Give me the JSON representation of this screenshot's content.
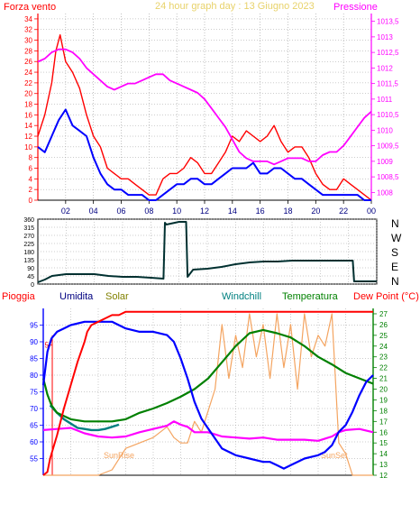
{
  "panel1": {
    "title": "24 hour graph day : 13 Giugno 2023",
    "left_label": "Forza vento",
    "right_label": "Pressione",
    "colors": {
      "title": "#e8d26a",
      "wind": "#ff0000",
      "gust": "#ff0000",
      "avg": "#0000ff",
      "pressure": "#ff00ff",
      "left_axis": "#ff0000",
      "right_axis": "#ff00ff",
      "grid": "#888888"
    }
  },
  "panel2": {
    "dir_labels": [
      "N",
      "W",
      "S",
      "E",
      "N"
    ],
    "colors": {
      "line": "#003030",
      "axis": "#000000"
    }
  },
  "panel3": {
    "legend": [
      "Pioggia",
      "Umidita",
      "Solar",
      "Windchill",
      "Temperatura",
      "Dew Point (°C)"
    ],
    "legend_colors": [
      "#ff0000",
      "#000080",
      "#808000",
      "#008080",
      "#008000",
      "#ff0000"
    ],
    "annotations": [
      "SunRise",
      "SunSet"
    ],
    "annotation_color": "#f4a460",
    "colors": {
      "humidity": "#0000ff",
      "temperature": "#008000",
      "dewpoint": "#ff00ff",
      "windchill": "#008080",
      "solar": "#f4a460",
      "rain": "#ff0000",
      "left_axis": "#0000ff",
      "right_axis": "#008000"
    }
  },
  "chart_data": [
    {
      "type": "line",
      "title": "24 hour graph day : 13 Giugno 2023",
      "xlabel": "",
      "ylabel": "Forza vento",
      "y2label": "Pressione",
      "x_ticks": [
        "02",
        "04",
        "06",
        "08",
        "10",
        "12",
        "14",
        "16",
        "18",
        "20",
        "22",
        "00"
      ],
      "x_range": [
        0,
        24
      ],
      "ylim": [
        0,
        35
      ],
      "y_ticks": [
        "0",
        "2",
        "4",
        "6",
        "8",
        "10",
        "12",
        "14",
        "16",
        "18",
        "20",
        "22",
        "24",
        "26",
        "28",
        "30",
        "32",
        "34"
      ],
      "y2lim": [
        1007.75,
        1013.75
      ],
      "y2_ticks": [
        "1008",
        "1008,5",
        "1009",
        "1009,5",
        "1010",
        "1010,5",
        "1011",
        "1011,5",
        "1012",
        "1012,5",
        "1013",
        "1013,5"
      ],
      "grid": true,
      "series": [
        {
          "name": "",
          "axis": "left",
          "color": "#ff0000",
          "x": [
            0,
            0.5,
            1,
            1.3,
            1.6,
            2,
            2.5,
            3,
            3.5,
            4,
            4.5,
            5,
            5.5,
            6,
            6.5,
            7,
            7.5,
            8,
            8.5,
            9,
            9.5,
            10,
            10.5,
            11,
            11.5,
            12,
            12.5,
            13,
            13.5,
            14,
            14.5,
            15,
            15.5,
            16,
            16.5,
            17,
            17.5,
            18,
            18.5,
            19,
            19.5,
            20,
            20.5,
            21,
            21.5,
            22,
            22.5,
            23,
            23.5,
            24
          ],
          "values": [
            12,
            16,
            22,
            28,
            31,
            26,
            24,
            21,
            16,
            12,
            10,
            6,
            5,
            4,
            4,
            3,
            2,
            1,
            1,
            4,
            5,
            5,
            6,
            8,
            7,
            5,
            5,
            7,
            9,
            12,
            11,
            13,
            12,
            11,
            12,
            14,
            11,
            9,
            10,
            10,
            8,
            5,
            3,
            2,
            2,
            4,
            3,
            2,
            1,
            0
          ]
        },
        {
          "name": "",
          "axis": "left",
          "color": "#0000ff",
          "x": [
            0,
            0.5,
            1,
            1.5,
            2,
            2.5,
            3,
            3.5,
            4,
            4.5,
            5,
            5.5,
            6,
            6.5,
            7,
            7.5,
            8,
            8.5,
            9,
            9.5,
            10,
            10.5,
            11,
            11.5,
            12,
            12.5,
            13,
            13.5,
            14,
            14.5,
            15,
            15.5,
            16,
            16.5,
            17,
            17.5,
            18,
            18.5,
            19,
            19.5,
            20,
            20.5,
            21,
            21.5,
            22,
            22.5,
            23,
            23.5,
            24
          ],
          "values": [
            10,
            9,
            12,
            15,
            17,
            14,
            13,
            12,
            8,
            5,
            3,
            2,
            2,
            1,
            1,
            1,
            0,
            0,
            1,
            2,
            3,
            3,
            4,
            4,
            3,
            3,
            4,
            5,
            6,
            6,
            6,
            7,
            5,
            5,
            6,
            6,
            5,
            4,
            4,
            3,
            2,
            1,
            1,
            1,
            1,
            1,
            1,
            0,
            0
          ]
        },
        {
          "name": "",
          "axis": "right",
          "color": "#ff00ff",
          "x": [
            0,
            0.5,
            1,
            1.5,
            2,
            2.5,
            3,
            3.5,
            4,
            4.5,
            5,
            5.5,
            6,
            6.5,
            7,
            7.5,
            8,
            8.5,
            9,
            9.5,
            10,
            10.5,
            11,
            11.5,
            12,
            12.5,
            13,
            13.5,
            14,
            14.5,
            15,
            15.5,
            16,
            16.5,
            17,
            17.5,
            18,
            18.5,
            19,
            19.5,
            20,
            20.5,
            21,
            21.5,
            22,
            22.5,
            23,
            23.5,
            24
          ],
          "values": [
            1012.2,
            1012.3,
            1012.5,
            1012.6,
            1012.6,
            1012.5,
            1012.3,
            1012.0,
            1011.8,
            1011.6,
            1011.4,
            1011.3,
            1011.4,
            1011.5,
            1011.5,
            1011.6,
            1011.7,
            1011.8,
            1011.8,
            1011.6,
            1011.5,
            1011.4,
            1011.3,
            1011.2,
            1011.0,
            1010.7,
            1010.4,
            1010.1,
            1009.7,
            1009.3,
            1009.1,
            1009.0,
            1009.0,
            1009.0,
            1008.9,
            1009.0,
            1009.1,
            1009.1,
            1009.1,
            1009.0,
            1009.0,
            1009.2,
            1009.3,
            1009.3,
            1009.5,
            1009.8,
            1010.1,
            1010.4,
            1010.6
          ]
        }
      ]
    },
    {
      "type": "line",
      "title": "",
      "xlabel": "",
      "ylabel": "",
      "x_range": [
        0,
        24
      ],
      "ylim": [
        0,
        360
      ],
      "y_ticks": [
        "0",
        "45",
        "90",
        "135",
        "180",
        "225",
        "270",
        "315",
        "360"
      ],
      "y2_labels": [
        "N",
        "W",
        "S",
        "E",
        "N"
      ],
      "grid": true,
      "series": [
        {
          "name": "",
          "color": "#003030",
          "x": [
            0,
            0.5,
            1,
            2,
            3,
            4,
            5,
            6,
            7,
            8,
            8.9,
            9.0,
            9.1,
            10,
            10.5,
            10.6,
            11,
            12,
            13,
            14,
            15,
            16,
            17,
            18,
            19,
            20,
            21,
            22,
            22.3,
            22.4,
            23,
            24
          ],
          "values": [
            10,
            25,
            45,
            55,
            55,
            55,
            45,
            40,
            40,
            35,
            30,
            340,
            330,
            345,
            345,
            40,
            80,
            85,
            95,
            110,
            120,
            125,
            125,
            130,
            130,
            130,
            130,
            130,
            130,
            15,
            15,
            15
          ]
        }
      ]
    },
    {
      "type": "line",
      "title": "",
      "xlabel": "",
      "ylabel": "",
      "x_range": [
        0,
        24
      ],
      "ylim": [
        50,
        100
      ],
      "y_ticks": [
        "55",
        "60",
        "65",
        "70",
        "75",
        "80",
        "85",
        "90",
        "95"
      ],
      "y2lim": [
        12,
        27.5
      ],
      "y2_ticks": [
        "12",
        "13",
        "14",
        "15",
        "16",
        "17",
        "18",
        "19",
        "20",
        "21",
        "22",
        "23",
        "24",
        "25",
        "26",
        "27"
      ],
      "grid": true,
      "series": [
        {
          "name": "Umidita",
          "axis": "left",
          "color": "#0000ff",
          "x": [
            0,
            0.3,
            0.6,
            1,
            1.5,
            2,
            3,
            4,
            5,
            6,
            7,
            8,
            9,
            9.5,
            10,
            10.5,
            11,
            11.5,
            12,
            12.5,
            13,
            14,
            15,
            16,
            16.5,
            17,
            17.5,
            18,
            19,
            20,
            20.5,
            21,
            21.5,
            22,
            22.5,
            23,
            23.5,
            24
          ],
          "values": [
            77,
            87,
            91,
            93,
            94,
            95,
            96,
            96,
            96,
            94,
            93,
            93,
            92,
            90,
            85,
            79,
            72,
            67,
            64,
            61,
            58,
            56,
            55,
            54,
            54,
            53,
            52,
            53,
            55,
            56,
            57,
            59,
            63,
            65,
            69,
            74,
            78,
            80
          ]
        },
        {
          "name": "Temperatura",
          "axis": "right",
          "color": "#008000",
          "x": [
            0,
            0.3,
            0.6,
            1,
            2,
            3,
            4,
            5,
            6,
            7,
            8,
            9,
            10,
            11,
            12,
            13,
            14,
            15,
            16,
            17,
            18,
            19,
            20,
            21,
            22,
            23,
            24
          ],
          "values": [
            21,
            19.5,
            18.5,
            17.8,
            17.2,
            17.0,
            17.0,
            17.0,
            17.2,
            17.8,
            18.2,
            18.7,
            19.3,
            20.0,
            21.0,
            22.5,
            24.0,
            25.2,
            25.5,
            25.2,
            24.8,
            24.0,
            23.0,
            22.3,
            21.5,
            21.0,
            20.5
          ]
        },
        {
          "name": "Dew Point (°C)",
          "axis": "right",
          "color": "#ff00ff",
          "x": [
            0,
            1,
            2,
            3,
            4,
            5,
            6,
            7,
            8,
            9,
            9.5,
            10,
            10.5,
            11,
            12,
            13,
            14,
            15,
            16,
            17,
            18,
            19,
            20,
            20.5,
            21,
            21.5,
            22,
            23,
            24
          ],
          "values": [
            16.2,
            16.3,
            16.4,
            15.9,
            15.6,
            15.5,
            15.6,
            16.0,
            16.3,
            16.6,
            17.0,
            16.7,
            16.5,
            16.0,
            16.0,
            15.6,
            15.5,
            15.4,
            15.5,
            15.3,
            15.3,
            15.3,
            15.2,
            15.4,
            15.6,
            16.0,
            16.2,
            16.3,
            16.0
          ]
        },
        {
          "name": "Windchill",
          "axis": "right",
          "color": "#008080",
          "x": [
            0.5,
            1,
            1.5,
            2,
            2.5,
            3,
            3.5,
            4,
            4.5,
            5,
            5.5
          ],
          "values": [
            18.5,
            17.8,
            17.2,
            16.8,
            16.4,
            16.3,
            16.2,
            16.2,
            16.3,
            16.5,
            16.7
          ]
        },
        {
          "name": "Solar",
          "axis": "right",
          "color": "#f4a460",
          "x": [
            0,
            4,
            5,
            5.5,
            6,
            7,
            8,
            9,
            9.5,
            10,
            10.5,
            11,
            11.5,
            12,
            12.5,
            13,
            13.5,
            14,
            14.5,
            15,
            15.5,
            16,
            16.5,
            17,
            17.5,
            18,
            18.5,
            19,
            19.5,
            20,
            20.5,
            21,
            21.5,
            22,
            22.5,
            23,
            24
          ],
          "values": [
            12,
            12,
            12.5,
            13.5,
            14.5,
            15.0,
            15.5,
            16.5,
            15.5,
            15.0,
            15.0,
            17.0,
            16.0,
            18.0,
            20.0,
            26.0,
            21.0,
            25.0,
            22.0,
            27.0,
            23.0,
            26.0,
            21.0,
            27.0,
            22.0,
            26.0,
            20.0,
            27.0,
            23.0,
            25.0,
            24.0,
            27.0,
            15.0,
            14.0,
            12.0,
            12.0,
            12.0
          ]
        },
        {
          "name": "Pioggia",
          "axis": "left",
          "color": "#ff0000",
          "x": [
            0,
            0.3,
            0.5,
            1,
            1.5,
            2,
            2.5,
            3,
            3.2,
            3.5,
            4,
            4.5,
            5,
            5.5,
            6,
            8,
            10,
            12,
            14,
            16,
            18,
            20,
            22,
            24
          ],
          "values": [
            50,
            51,
            55,
            62,
            70,
            77,
            84,
            90,
            93,
            95,
            96,
            97,
            98,
            98,
            99,
            99,
            99,
            99,
            99,
            99,
            99,
            99,
            99,
            99
          ]
        }
      ]
    }
  ]
}
